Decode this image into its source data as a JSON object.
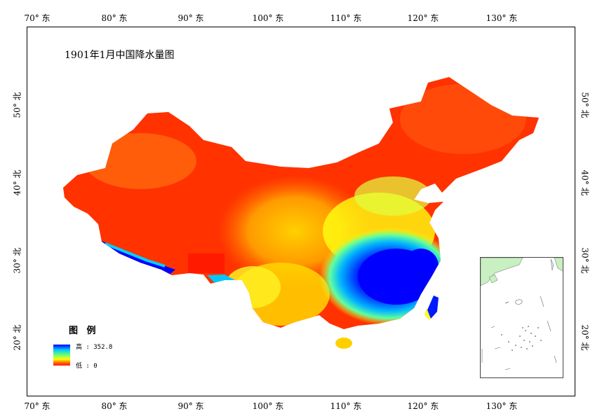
{
  "map": {
    "title": "1901年1月中国降水量图",
    "top_labels": [
      "70° 东",
      "80° 东",
      "90° 东",
      "100° 东",
      "110° 东",
      "120° 东",
      "130° 东"
    ],
    "bottom_labels": [
      "70° 东",
      "80° 东",
      "90° 东",
      "100° 东",
      "110° 东",
      "120° 东",
      "130° 东"
    ],
    "left_labels": [
      "50° 北",
      "40° 北",
      "30° 北",
      "20° 北"
    ],
    "right_labels": [
      "50° 北",
      "40° 北",
      "30° 北",
      "20° 北"
    ],
    "color_scale": [
      "#0000ff",
      "#00c8ff",
      "#70ff70",
      "#ffff00",
      "#ff7000",
      "#ff1a00"
    ]
  },
  "legend": {
    "title": "图 例",
    "high": "高 : 352.8",
    "low": "低 : 0"
  }
}
